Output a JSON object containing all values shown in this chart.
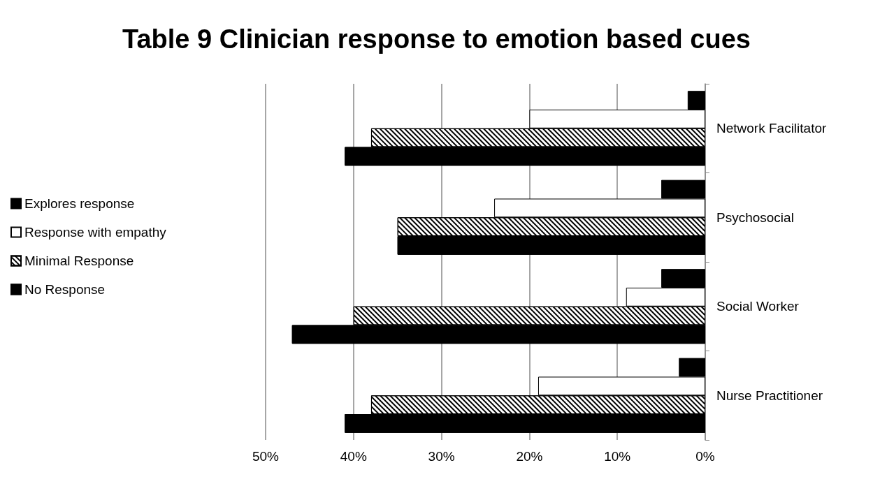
{
  "chart_data": {
    "type": "bar",
    "orientation": "horizontal",
    "title": "Table 9 Clinician response to emotion based cues",
    "categories": [
      "Network Facilitator",
      "Psychosocial",
      "Social Worker",
      "Nurse Practitioner"
    ],
    "series": [
      {
        "name": "Explores response",
        "color": "#000000",
        "values": [
          2,
          5,
          5,
          3
        ]
      },
      {
        "name": "Response with empathy",
        "color": "#ffffff",
        "values": [
          20,
          24,
          9,
          19
        ]
      },
      {
        "name": "Minimal Response",
        "color": "#ffffff",
        "values": [
          38,
          35,
          40,
          38
        ]
      },
      {
        "name": "No Response",
        "color": "#000000",
        "values": [
          41,
          35,
          47,
          41
        ]
      }
    ],
    "xlim": [
      50,
      0
    ],
    "xticks": [
      {
        "value": 50,
        "label": "50%"
      },
      {
        "value": 40,
        "label": "40%"
      },
      {
        "value": 30,
        "label": "30%"
      },
      {
        "value": 20,
        "label": "20%"
      },
      {
        "value": 10,
        "label": "10%"
      },
      {
        "value": 0,
        "label": "0%"
      }
    ],
    "grid": "x",
    "legend": "left"
  }
}
